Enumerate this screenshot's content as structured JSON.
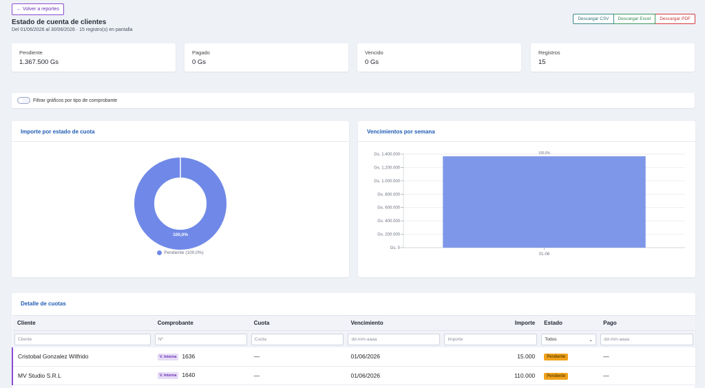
{
  "header": {
    "back_label": "← Volver a reportes",
    "title": "Estado de cuenta de clientes",
    "subtitle": "Del 01/06/2026 al 30/06/2026 · 15 registro(s) en pantalla"
  },
  "exports": {
    "csv": "Descargar CSV",
    "excel": "Descargar Excel",
    "pdf": "Descargar PDF"
  },
  "kpis": [
    {
      "label": "Pendiente",
      "value": "1.367.500 Gs"
    },
    {
      "label": "Pagado",
      "value": "0 Gs"
    },
    {
      "label": "Vencido",
      "value": "0 Gs"
    },
    {
      "label": "Registros",
      "value": "15"
    }
  ],
  "filter_toggle": {
    "label": "Filtrar gráficos por tipo de comprobante",
    "checked": false
  },
  "colors": {
    "accent": "#7089e8",
    "primary": "#1f5bb5",
    "pending": "#f0a21a",
    "tag": "#6b2fb3"
  },
  "chart_data": [
    {
      "type": "pie",
      "title": "Importe por estado de cuota",
      "categories": [
        "Pendiente"
      ],
      "values": [
        100.0
      ],
      "data_labels": [
        "100,0%"
      ],
      "legend": [
        "Pendiente (100,0%)"
      ],
      "legend_position": "bottom"
    },
    {
      "type": "bar",
      "title": "Vencimientos por semana",
      "categories": [
        "01-06"
      ],
      "values": [
        1367500
      ],
      "data_labels": [
        "100,0%"
      ],
      "ylim": [
        0,
        1400000
      ],
      "yticks": [
        "Gs. 0",
        "Gs. 200.000",
        "Gs. 400.000",
        "Gs. 600.000",
        "Gs. 800.000",
        "Gs. 1.000.000",
        "Gs. 1.200.000",
        "Gs. 1.400.000"
      ],
      "grid": true
    }
  ],
  "table": {
    "title": "Detalle de cuotas",
    "columns": [
      "Cliente",
      "Comprobante",
      "Cuota",
      "Vencimiento",
      "Importe",
      "Estado",
      "Pago"
    ],
    "filters": {
      "cliente": "Cliente",
      "comprobante": "Nº",
      "cuota": "Cuota",
      "vencimiento": "dd-mm-aaaa",
      "importe": "Importe",
      "estado": "Todos",
      "pago": "dd-mm-aaaa"
    },
    "rows": [
      {
        "cliente": "Cristobal Gonzalez Wilfrido",
        "tipo": "V. Interna",
        "numero": "1636",
        "cuota": "—",
        "vencimiento": "01/06/2026",
        "importe": "15.000",
        "estado": "Pendiente",
        "pago": "—"
      },
      {
        "cliente": "MV Studio S.R.L",
        "tipo": "V. Interna",
        "numero": "1640",
        "cuota": "—",
        "vencimiento": "01/06/2026",
        "importe": "110.000",
        "estado": "Pendiente",
        "pago": "—"
      }
    ]
  }
}
